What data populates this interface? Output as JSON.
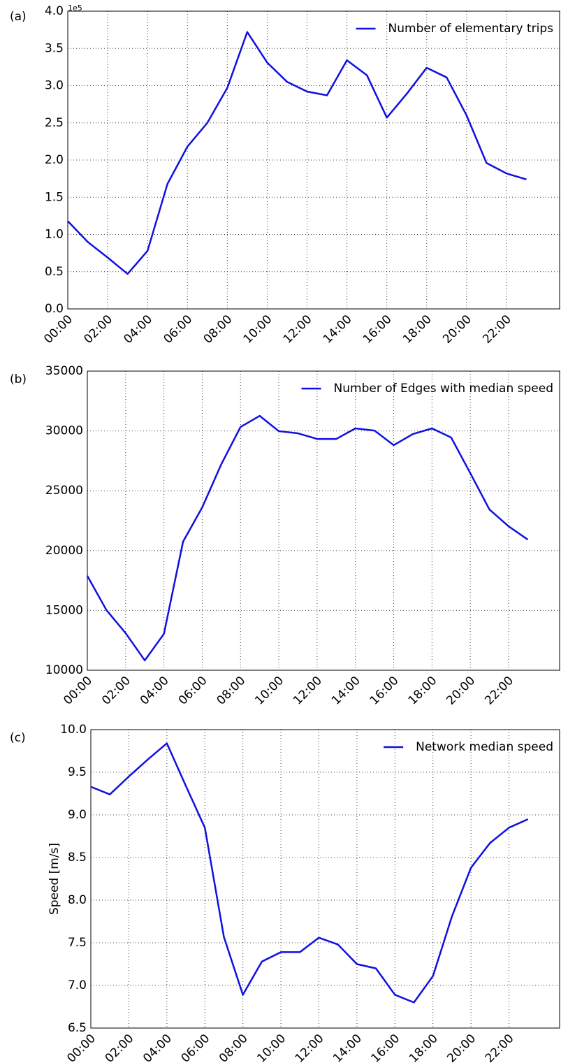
{
  "chart_data": [
    {
      "type": "line",
      "panel_label": "(a)",
      "offset_label": "1e5",
      "legend": "upper right",
      "grid": true,
      "x": [
        0,
        1,
        2,
        3,
        4,
        5,
        6,
        7,
        8,
        9,
        10,
        11,
        12,
        13,
        14,
        15,
        16,
        17,
        18,
        19,
        20,
        21,
        22,
        23
      ],
      "series": [
        {
          "name": "Number of elementary trips",
          "color": "#1010e0",
          "values": [
            1.18,
            0.9,
            0.69,
            0.47,
            0.78,
            1.68,
            2.18,
            2.5,
            2.97,
            3.72,
            3.31,
            3.05,
            2.92,
            2.87,
            3.34,
            3.14,
            2.57,
            2.89,
            3.24,
            3.11,
            2.6,
            1.96,
            1.82,
            1.74
          ]
        }
      ],
      "xlim": [
        0,
        24.7
      ],
      "xticks": [
        {
          "value": 0,
          "label": "00:00"
        },
        {
          "value": 2,
          "label": "02:00"
        },
        {
          "value": 4,
          "label": "04:00"
        },
        {
          "value": 6,
          "label": "06:00"
        },
        {
          "value": 8,
          "label": "08:00"
        },
        {
          "value": 10,
          "label": "10:00"
        },
        {
          "value": 12,
          "label": "12:00"
        },
        {
          "value": 14,
          "label": "14:00"
        },
        {
          "value": 16,
          "label": "16:00"
        },
        {
          "value": 18,
          "label": "18:00"
        },
        {
          "value": 20,
          "label": "20:00"
        },
        {
          "value": 22,
          "label": "22:00"
        }
      ],
      "ylim": [
        0,
        4
      ],
      "yticks": [
        {
          "value": 0,
          "label": "0.0"
        },
        0.5,
        {
          "value": 1,
          "label": "1.0"
        },
        1.5,
        {
          "value": 2,
          "label": "2.0"
        },
        2.5,
        {
          "value": 3,
          "label": "3.0"
        },
        3.5,
        {
          "value": 4,
          "label": "4.0"
        }
      ]
    },
    {
      "type": "line",
      "panel_label": "(b)",
      "legend": "upper right",
      "grid": true,
      "x": [
        0,
        1,
        2,
        3,
        4,
        5,
        6,
        7,
        8,
        9,
        10,
        11,
        12,
        13,
        14,
        15,
        16,
        17,
        18,
        19,
        20,
        21,
        22,
        23
      ],
      "series": [
        {
          "name": "Number of Edges with median speed",
          "color": "#1010e0",
          "values": [
            17890,
            15020,
            13100,
            10820,
            13040,
            20750,
            23610,
            27230,
            30330,
            31260,
            29980,
            29800,
            29330,
            29330,
            30210,
            30030,
            28810,
            29740,
            30210,
            29450,
            26470,
            23430,
            22030,
            20920
          ]
        }
      ],
      "xlim": [
        0,
        24.7
      ],
      "xticks": [
        {
          "value": 0,
          "label": "00:00"
        },
        {
          "value": 2,
          "label": "02:00"
        },
        {
          "value": 4,
          "label": "04:00"
        },
        {
          "value": 6,
          "label": "06:00"
        },
        {
          "value": 8,
          "label": "08:00"
        },
        {
          "value": 10,
          "label": "10:00"
        },
        {
          "value": 12,
          "label": "12:00"
        },
        {
          "value": 14,
          "label": "14:00"
        },
        {
          "value": 16,
          "label": "16:00"
        },
        {
          "value": 18,
          "label": "18:00"
        },
        {
          "value": 20,
          "label": "20:00"
        },
        {
          "value": 22,
          "label": "22:00"
        }
      ],
      "ylim": [
        10000,
        35000
      ],
      "yticks": [
        10000,
        15000,
        20000,
        25000,
        30000,
        35000
      ]
    },
    {
      "type": "line",
      "panel_label": "(c)",
      "ylabel": "Speed [m/s]",
      "legend": "upper right",
      "grid": true,
      "x": [
        0,
        1,
        2,
        3,
        4,
        5,
        6,
        7,
        8,
        9,
        10,
        11,
        12,
        13,
        14,
        15,
        16,
        17,
        18,
        19,
        20,
        21,
        22,
        23
      ],
      "series": [
        {
          "name": "Network median speed",
          "color": "#1010e0",
          "values": [
            9.33,
            9.24,
            9.45,
            9.65,
            9.84,
            9.34,
            8.85,
            7.57,
            6.89,
            7.28,
            7.39,
            7.39,
            7.56,
            7.48,
            7.25,
            7.2,
            6.89,
            6.8,
            7.11,
            7.81,
            8.38,
            8.67,
            8.85,
            8.95
          ]
        }
      ],
      "xlim": [
        0,
        24.7
      ],
      "xticks": [
        {
          "value": 0,
          "label": "00:00"
        },
        {
          "value": 2,
          "label": "02:00"
        },
        {
          "value": 4,
          "label": "04:00"
        },
        {
          "value": 6,
          "label": "06:00"
        },
        {
          "value": 8,
          "label": "08:00"
        },
        {
          "value": 10,
          "label": "10:00"
        },
        {
          "value": 12,
          "label": "12:00"
        },
        {
          "value": 14,
          "label": "14:00"
        },
        {
          "value": 16,
          "label": "16:00"
        },
        {
          "value": 18,
          "label": "18:00"
        },
        {
          "value": 20,
          "label": "20:00"
        },
        {
          "value": 22,
          "label": "22:00"
        }
      ],
      "ylim": [
        6.5,
        10
      ],
      "yticks": [
        6.5,
        {
          "value": 7,
          "label": "7.0"
        },
        7.5,
        {
          "value": 8,
          "label": "8.0"
        },
        8.5,
        {
          "value": 9,
          "label": "9.0"
        },
        9.5,
        {
          "value": 10,
          "label": "10.0"
        }
      ]
    }
  ]
}
